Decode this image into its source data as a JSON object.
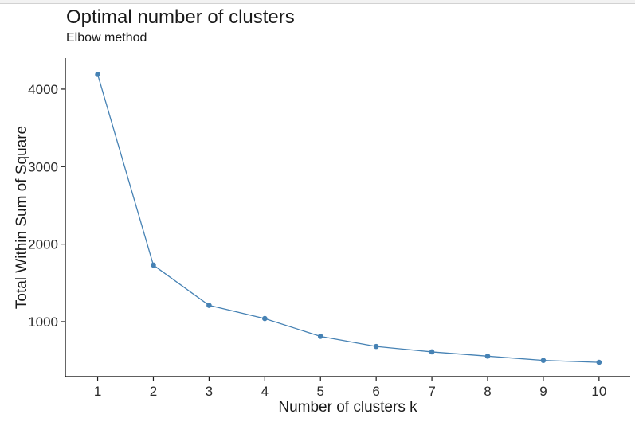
{
  "window": {
    "top_strip_color": "#f2f2f2",
    "top_strip_border_color": "#d2d2d2"
  },
  "chart_data": {
    "type": "line",
    "title": "Optimal number of clusters",
    "subtitle": "Elbow method",
    "xlabel": "Number of clusters k",
    "ylabel": "Total Within Sum of Square",
    "x": [
      1,
      2,
      3,
      4,
      5,
      6,
      7,
      8,
      9,
      10
    ],
    "y": [
      4190,
      1730,
      1210,
      1040,
      810,
      680,
      610,
      555,
      500,
      475
    ],
    "x_tick_labels": [
      "1",
      "2",
      "3",
      "4",
      "5",
      "6",
      "7",
      "8",
      "9",
      "10"
    ],
    "y_ticks": [
      1000,
      2000,
      3000,
      4000
    ],
    "xlim": [
      0.42,
      10.56
    ],
    "ylim": [
      291,
      4400
    ],
    "grid": false,
    "legend": "none",
    "theme": "classic",
    "series_color": "#4682B4",
    "marker": "circle",
    "marker_radius": 3.3,
    "line_width": 1.3
  }
}
